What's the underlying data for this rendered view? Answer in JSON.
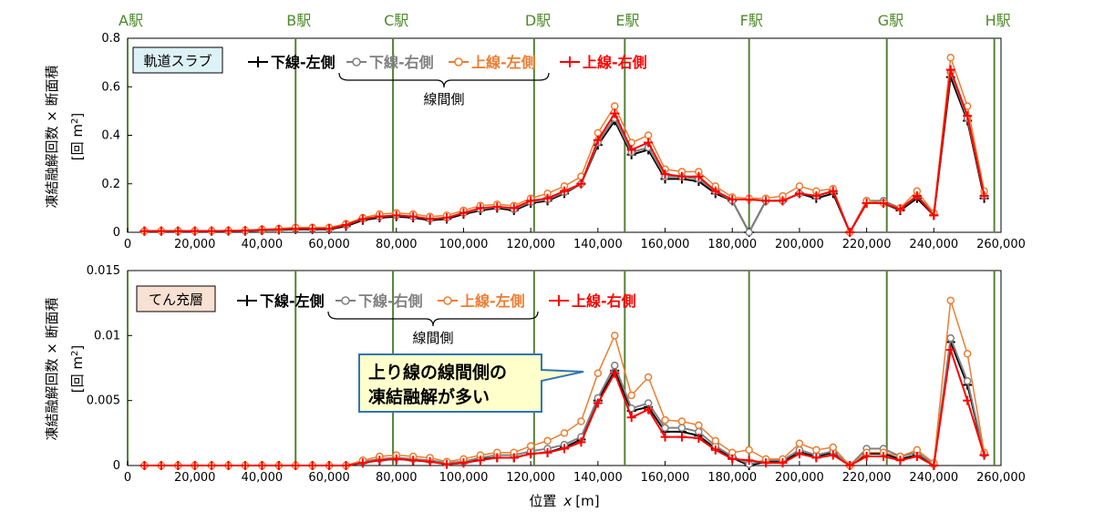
{
  "colors": {
    "black": "#000000",
    "gray": "#808080",
    "orange": "#ed7d31",
    "red": "#ff0000",
    "station_line": "#548235",
    "label_box_top": "#ddf2f7",
    "label_box_bottom": "#f8e0d2",
    "callout_fill": "#ffffcc",
    "callout_border": "#2e75b6"
  },
  "stations": [
    {
      "name": "A駅",
      "x": 0
    },
    {
      "name": "B駅",
      "x": 50000
    },
    {
      "name": "C駅",
      "x": 79000
    },
    {
      "name": "D駅",
      "x": 121000
    },
    {
      "name": "E駅",
      "x": 148000
    },
    {
      "name": "F駅",
      "x": 185000
    },
    {
      "name": "G駅",
      "x": 226000
    },
    {
      "name": "H駅",
      "x": 258000
    }
  ],
  "xaxis": {
    "label_main": "位置",
    "label_var": "x",
    "label_unit": "[m]",
    "ticks": [
      "0",
      "20,000",
      "40,000",
      "60,000",
      "80,000",
      "100,000",
      "120,000",
      "140,000",
      "160,000",
      "180,000",
      "200,000",
      "220,000",
      "240,000",
      "260,000"
    ]
  },
  "legend": {
    "series": [
      "下線-左側",
      "下線-右側",
      "上線-左側",
      "上線-右側"
    ],
    "group_label": "線間側"
  },
  "chart_data": [
    {
      "type": "line",
      "panel_label": "軌道スラブ",
      "ylabel_line1": "凍結融解回数 × 断面積",
      "ylabel_line2": "[回 m",
      "ylabel_sup": "2",
      "ylabel_close": "]",
      "xlim": [
        0,
        260000
      ],
      "ylim": [
        0,
        0.8
      ],
      "yticks": [
        "0",
        "0.2",
        "0.4",
        "0.6",
        "0.8"
      ],
      "x": [
        5000,
        10000,
        15000,
        20000,
        25000,
        30000,
        35000,
        40000,
        45000,
        50000,
        55000,
        60000,
        65000,
        70000,
        75000,
        80000,
        85000,
        90000,
        95000,
        100000,
        105000,
        110000,
        115000,
        120000,
        125000,
        130000,
        135000,
        140000,
        145000,
        150000,
        155000,
        160000,
        165000,
        170000,
        175000,
        180000,
        185000,
        190000,
        195000,
        200000,
        205000,
        210000,
        215000,
        220000,
        225000,
        230000,
        235000,
        240000,
        245000,
        250000,
        255000
      ],
      "series": [
        {
          "name": "下線-左側",
          "values": [
            0.005,
            0.005,
            0.005,
            0.005,
            0.005,
            0.005,
            0.005,
            0.008,
            0.01,
            0.012,
            0.012,
            0.012,
            0.025,
            0.05,
            0.06,
            0.065,
            0.06,
            0.05,
            0.055,
            0.075,
            0.09,
            0.1,
            0.09,
            0.12,
            0.13,
            0.16,
            0.2,
            0.36,
            0.46,
            0.32,
            0.34,
            0.22,
            0.22,
            0.21,
            0.16,
            0.13,
            0.0,
            0.13,
            0.13,
            0.16,
            0.14,
            0.16,
            0.0,
            0.12,
            0.12,
            0.09,
            0.14,
            0.07,
            0.64,
            0.46,
            0.14
          ]
        },
        {
          "name": "下線-右側",
          "values": [
            0.005,
            0.005,
            0.005,
            0.005,
            0.005,
            0.005,
            0.005,
            0.008,
            0.012,
            0.015,
            0.015,
            0.015,
            0.03,
            0.055,
            0.065,
            0.07,
            0.065,
            0.055,
            0.06,
            0.08,
            0.095,
            0.105,
            0.095,
            0.125,
            0.135,
            0.165,
            0.2,
            0.37,
            0.47,
            0.33,
            0.35,
            0.23,
            0.23,
            0.22,
            0.17,
            0.13,
            0.0,
            0.13,
            0.13,
            0.16,
            0.15,
            0.17,
            0.0,
            0.13,
            0.13,
            0.1,
            0.15,
            0.08,
            0.66,
            0.47,
            0.15
          ]
        },
        {
          "name": "上線-左側",
          "values": [
            0.005,
            0.006,
            0.006,
            0.006,
            0.006,
            0.007,
            0.008,
            0.012,
            0.015,
            0.02,
            0.02,
            0.02,
            0.035,
            0.06,
            0.075,
            0.08,
            0.075,
            0.065,
            0.07,
            0.09,
            0.11,
            0.115,
            0.11,
            0.14,
            0.16,
            0.19,
            0.23,
            0.41,
            0.52,
            0.37,
            0.4,
            0.26,
            0.25,
            0.25,
            0.19,
            0.145,
            0.14,
            0.14,
            0.15,
            0.19,
            0.17,
            0.18,
            0.0,
            0.13,
            0.12,
            0.1,
            0.17,
            0.08,
            0.72,
            0.52,
            0.17
          ]
        },
        {
          "name": "上線-右側",
          "values": [
            0.005,
            0.005,
            0.005,
            0.005,
            0.005,
            0.006,
            0.007,
            0.01,
            0.012,
            0.015,
            0.015,
            0.015,
            0.03,
            0.055,
            0.065,
            0.07,
            0.065,
            0.055,
            0.06,
            0.08,
            0.1,
            0.105,
            0.1,
            0.13,
            0.14,
            0.17,
            0.2,
            0.38,
            0.49,
            0.34,
            0.37,
            0.24,
            0.23,
            0.23,
            0.17,
            0.135,
            0.135,
            0.13,
            0.13,
            0.16,
            0.15,
            0.17,
            0.0,
            0.12,
            0.12,
            0.095,
            0.15,
            0.07,
            0.67,
            0.48,
            0.15
          ]
        }
      ]
    },
    {
      "type": "line",
      "panel_label": "てん充層",
      "ylabel_line1": "凍結融解回数 × 断面積",
      "ylabel_line2": "[回 m",
      "ylabel_sup": "2",
      "ylabel_close": "]",
      "xlim": [
        0,
        260000
      ],
      "ylim": [
        0,
        0.015
      ],
      "yticks": [
        "0",
        "0.005",
        "0.01",
        "0.015"
      ],
      "annotation": [
        "上り線の線間側の",
        "凍結融解が多い"
      ],
      "x": [
        5000,
        10000,
        15000,
        20000,
        25000,
        30000,
        35000,
        40000,
        45000,
        50000,
        55000,
        60000,
        65000,
        70000,
        75000,
        80000,
        85000,
        90000,
        95000,
        100000,
        105000,
        110000,
        115000,
        120000,
        125000,
        130000,
        135000,
        140000,
        145000,
        150000,
        155000,
        160000,
        165000,
        170000,
        175000,
        180000,
        185000,
        190000,
        195000,
        200000,
        205000,
        210000,
        215000,
        220000,
        225000,
        230000,
        235000,
        240000,
        245000,
        250000,
        255000
      ],
      "series": [
        {
          "name": "下線-左側",
          "values": [
            0,
            0,
            0,
            0,
            0,
            0,
            0,
            0,
            0,
            0,
            0,
            0,
            0,
            0.0002,
            0.0004,
            0.0005,
            0.0004,
            0.0003,
            0.0001,
            0.0002,
            0.0005,
            0.0006,
            0.0006,
            0.0009,
            0.001,
            0.0014,
            0.002,
            0.005,
            0.0073,
            0.0042,
            0.0045,
            0.0026,
            0.0026,
            0.0023,
            0.0013,
            0.0006,
            0.0,
            0.0003,
            0.0003,
            0.001,
            0.0007,
            0.001,
            0.0,
            0.0009,
            0.0009,
            0.0005,
            0.0008,
            0.0,
            0.0095,
            0.0062,
            0.0008
          ]
        },
        {
          "name": "下線-右側",
          "values": [
            0,
            0,
            0,
            0,
            0,
            0,
            0,
            0,
            0,
            0,
            0,
            0,
            0,
            0.0003,
            0.0005,
            0.0006,
            0.0005,
            0.0004,
            0.0002,
            0.0003,
            0.0006,
            0.0008,
            0.0008,
            0.0011,
            0.0013,
            0.0016,
            0.0022,
            0.0052,
            0.0077,
            0.0044,
            0.0048,
            0.0029,
            0.0029,
            0.0026,
            0.0015,
            0.0007,
            0.0001,
            0.0004,
            0.0004,
            0.0012,
            0.0008,
            0.0011,
            0.0,
            0.0013,
            0.0013,
            0.0007,
            0.001,
            0.0001,
            0.0098,
            0.0065,
            0.0009
          ]
        },
        {
          "name": "上線-左側",
          "values": [
            0,
            0,
            0,
            0,
            0,
            0,
            0,
            0,
            0,
            0,
            0,
            0,
            0,
            0.0004,
            0.0007,
            0.0008,
            0.0007,
            0.0006,
            0.0003,
            0.0005,
            0.0008,
            0.001,
            0.001,
            0.0015,
            0.0019,
            0.0025,
            0.0034,
            0.0071,
            0.01,
            0.0054,
            0.0068,
            0.0035,
            0.0034,
            0.0031,
            0.0019,
            0.001,
            0.0012,
            0.0005,
            0.0005,
            0.0017,
            0.0012,
            0.0014,
            0.0,
            0.001,
            0.001,
            0.0007,
            0.0012,
            0.0002,
            0.0127,
            0.0086,
            0.001
          ]
        },
        {
          "name": "上線-右側",
          "values": [
            0,
            0,
            0,
            0,
            0,
            0,
            0,
            0,
            0,
            0,
            0,
            0,
            0,
            0.0002,
            0.0004,
            0.0005,
            0.0004,
            0.0003,
            0.0001,
            0.0002,
            0.0004,
            0.0006,
            0.0006,
            0.0009,
            0.001,
            0.0013,
            0.0018,
            0.0048,
            0.0071,
            0.0037,
            0.0043,
            0.0022,
            0.0022,
            0.0021,
            0.0012,
            0.0005,
            0.0004,
            0.0002,
            0.0002,
            0.0009,
            0.0006,
            0.0008,
            0.0,
            0.0007,
            0.0007,
            0.0004,
            0.0007,
            0.0,
            0.0089,
            0.005,
            0.0008
          ]
        }
      ]
    }
  ]
}
